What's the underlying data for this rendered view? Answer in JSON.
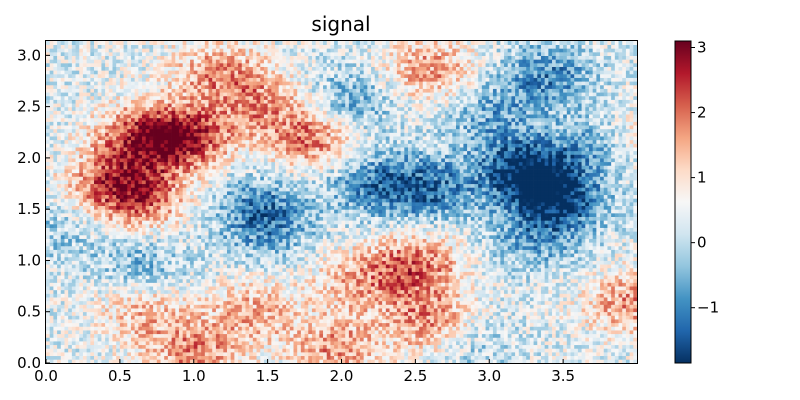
{
  "chart_data": {
    "type": "heatmap",
    "title": "signal",
    "xlabel": "",
    "ylabel": "",
    "xlim": [
      0.0,
      4.0
    ],
    "ylim": [
      0.0,
      3.14
    ],
    "xticks": [
      "0.0",
      "0.5",
      "1.0",
      "1.5",
      "2.0",
      "2.5",
      "3.0",
      "3.5"
    ],
    "yticks": [
      "0.0",
      "0.5",
      "1.0",
      "1.5",
      "2.0",
      "2.5",
      "3.0"
    ],
    "colormap": "RdBu_r",
    "colorbar": {
      "min": -1.85,
      "max": 3.1,
      "ticks": [
        "−1",
        "0",
        "1",
        "2",
        "3"
      ]
    },
    "grid": false,
    "features": [
      {
        "x": 0.65,
        "y": 2.2,
        "value": 2.6
      },
      {
        "x": 0.95,
        "y": 2.2,
        "value": 2.7
      },
      {
        "x": 0.45,
        "y": 1.75,
        "value": 2.2
      },
      {
        "x": 0.65,
        "y": 1.6,
        "value": 2.0
      },
      {
        "x": 1.8,
        "y": 2.2,
        "value": 2.3
      },
      {
        "x": 1.15,
        "y": 2.85,
        "value": 1.8
      },
      {
        "x": 1.45,
        "y": 2.55,
        "value": 1.7
      },
      {
        "x": 2.6,
        "y": 2.85,
        "value": 1.9
      },
      {
        "x": 2.3,
        "y": 2.05,
        "value": 0.3
      },
      {
        "x": 2.5,
        "y": 0.95,
        "value": 2.3
      },
      {
        "x": 2.6,
        "y": 0.4,
        "value": 2.1
      },
      {
        "x": 1.0,
        "y": 0.1,
        "value": 2.0
      },
      {
        "x": 1.95,
        "y": 0.15,
        "value": 1.9
      },
      {
        "x": 1.4,
        "y": 0.5,
        "value": 1.6
      },
      {
        "x": 0.65,
        "y": 0.5,
        "value": 1.5
      },
      {
        "x": 3.95,
        "y": 0.6,
        "value": 1.9
      },
      {
        "x": 3.95,
        "y": 2.2,
        "value": 1.4
      },
      {
        "x": 2.1,
        "y": 0.8,
        "value": 1.5
      },
      {
        "x": 1.45,
        "y": 1.55,
        "value": -0.9
      },
      {
        "x": 1.5,
        "y": 1.3,
        "value": -0.7
      },
      {
        "x": 2.2,
        "y": 1.75,
        "value": -1.2
      },
      {
        "x": 2.6,
        "y": 1.7,
        "value": -1.4
      },
      {
        "x": 3.35,
        "y": 1.75,
        "value": -1.6
      },
      {
        "x": 3.2,
        "y": 1.95,
        "value": -1.3
      },
      {
        "x": 3.5,
        "y": 1.55,
        "value": -1.1
      },
      {
        "x": 3.75,
        "y": 2.15,
        "value": -1.0
      },
      {
        "x": 3.4,
        "y": 2.8,
        "value": -1.2
      },
      {
        "x": 2.05,
        "y": 2.55,
        "value": -0.9
      },
      {
        "x": 3.3,
        "y": 1.2,
        "value": -0.8
      },
      {
        "x": 0.65,
        "y": 0.95,
        "value": -0.6
      },
      {
        "x": 2.85,
        "y": 0.2,
        "value": -0.4
      },
      {
        "x": 3.0,
        "y": 2.45,
        "value": -0.7
      },
      {
        "x": 0.1,
        "y": 1.3,
        "value": -0.3
      }
    ],
    "base_value": 0.35
  }
}
